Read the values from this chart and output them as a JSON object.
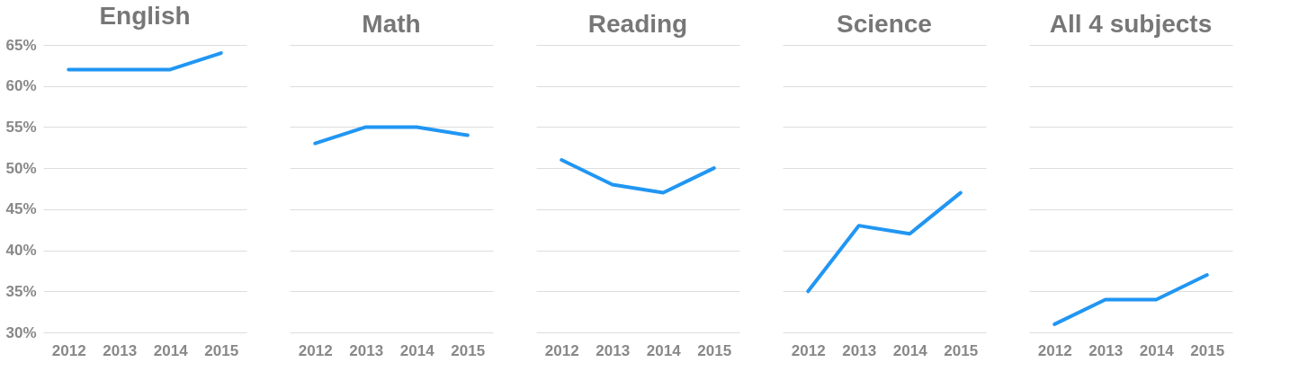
{
  "chart_data": [
    {
      "type": "line",
      "title": "English",
      "categories": [
        "2012",
        "2013",
        "2014",
        "2015"
      ],
      "series": [
        {
          "color": "#2196f3",
          "values": [
            62,
            62,
            62,
            64
          ]
        }
      ],
      "ylim": [
        30,
        65
      ],
      "yticks": [
        {
          "value": 30,
          "label": "30%"
        },
        {
          "value": 35,
          "label": "35%"
        },
        {
          "value": 40,
          "label": "40%"
        },
        {
          "value": 45,
          "label": "45%"
        },
        {
          "value": 50,
          "label": "50%"
        },
        {
          "value": 55,
          "label": "55%"
        },
        {
          "value": 60,
          "label": "60%"
        },
        {
          "value": 65,
          "label": "65%"
        }
      ],
      "grid": "y",
      "marker": "none",
      "line_style": "solid"
    },
    {
      "type": "line",
      "title": "Math",
      "categories": [
        "2012",
        "2013",
        "2014",
        "2015"
      ],
      "series": [
        {
          "color": "#2196f3",
          "values": [
            53,
            55,
            55,
            54
          ]
        }
      ],
      "ylim": [
        30,
        65
      ],
      "yticks": [
        {
          "value": 30,
          "label": null
        },
        {
          "value": 35,
          "label": null
        },
        {
          "value": 40,
          "label": null
        },
        {
          "value": 45,
          "label": null
        },
        {
          "value": 50,
          "label": null
        },
        {
          "value": 55,
          "label": null
        },
        {
          "value": 60,
          "label": null
        },
        {
          "value": 65,
          "label": null
        }
      ],
      "grid": "y",
      "marker": "none",
      "line_style": "solid",
      "tick_labels": "x"
    },
    {
      "type": "line",
      "title": "Reading",
      "categories": [
        "2012",
        "2013",
        "2014",
        "2015"
      ],
      "series": [
        {
          "color": "#2196f3",
          "values": [
            51,
            48,
            47,
            50
          ]
        }
      ],
      "ylim": [
        30,
        65
      ],
      "yticks": [
        {
          "value": 30,
          "label": null
        },
        {
          "value": 35,
          "label": null
        },
        {
          "value": 40,
          "label": null
        },
        {
          "value": 45,
          "label": null
        },
        {
          "value": 50,
          "label": null
        },
        {
          "value": 55,
          "label": null
        },
        {
          "value": 60,
          "label": null
        },
        {
          "value": 65,
          "label": null
        }
      ],
      "grid": "y",
      "marker": "none",
      "line_style": "solid",
      "tick_labels": "x"
    },
    {
      "type": "line",
      "title": "Science",
      "categories": [
        "2012",
        "2013",
        "2014",
        "2015"
      ],
      "series": [
        {
          "color": "#2196f3",
          "values": [
            35,
            43,
            42,
            47
          ]
        }
      ],
      "ylim": [
        30,
        65
      ],
      "yticks": [
        {
          "value": 30,
          "label": null
        },
        {
          "value": 35,
          "label": null
        },
        {
          "value": 40,
          "label": null
        },
        {
          "value": 45,
          "label": null
        },
        {
          "value": 50,
          "label": null
        },
        {
          "value": 55,
          "label": null
        },
        {
          "value": 60,
          "label": null
        },
        {
          "value": 65,
          "label": null
        }
      ],
      "grid": "y",
      "marker": "none",
      "line_style": "solid",
      "tick_labels": "x"
    },
    {
      "type": "line",
      "title": "All 4 subjects",
      "categories": [
        "2012",
        "2013",
        "2014",
        "2015"
      ],
      "series": [
        {
          "color": "#2196f3",
          "values": [
            31,
            34,
            34,
            37
          ]
        }
      ],
      "ylim": [
        30,
        65
      ],
      "yticks": [
        {
          "value": 30,
          "label": null
        },
        {
          "value": 35,
          "label": null
        },
        {
          "value": 40,
          "label": null
        },
        {
          "value": 45,
          "label": null
        },
        {
          "value": 50,
          "label": null
        },
        {
          "value": 55,
          "label": null
        },
        {
          "value": 60,
          "label": null
        },
        {
          "value": 65,
          "label": null
        }
      ],
      "grid": "y",
      "marker": "none",
      "line_style": "solid",
      "tick_labels": "x"
    }
  ]
}
